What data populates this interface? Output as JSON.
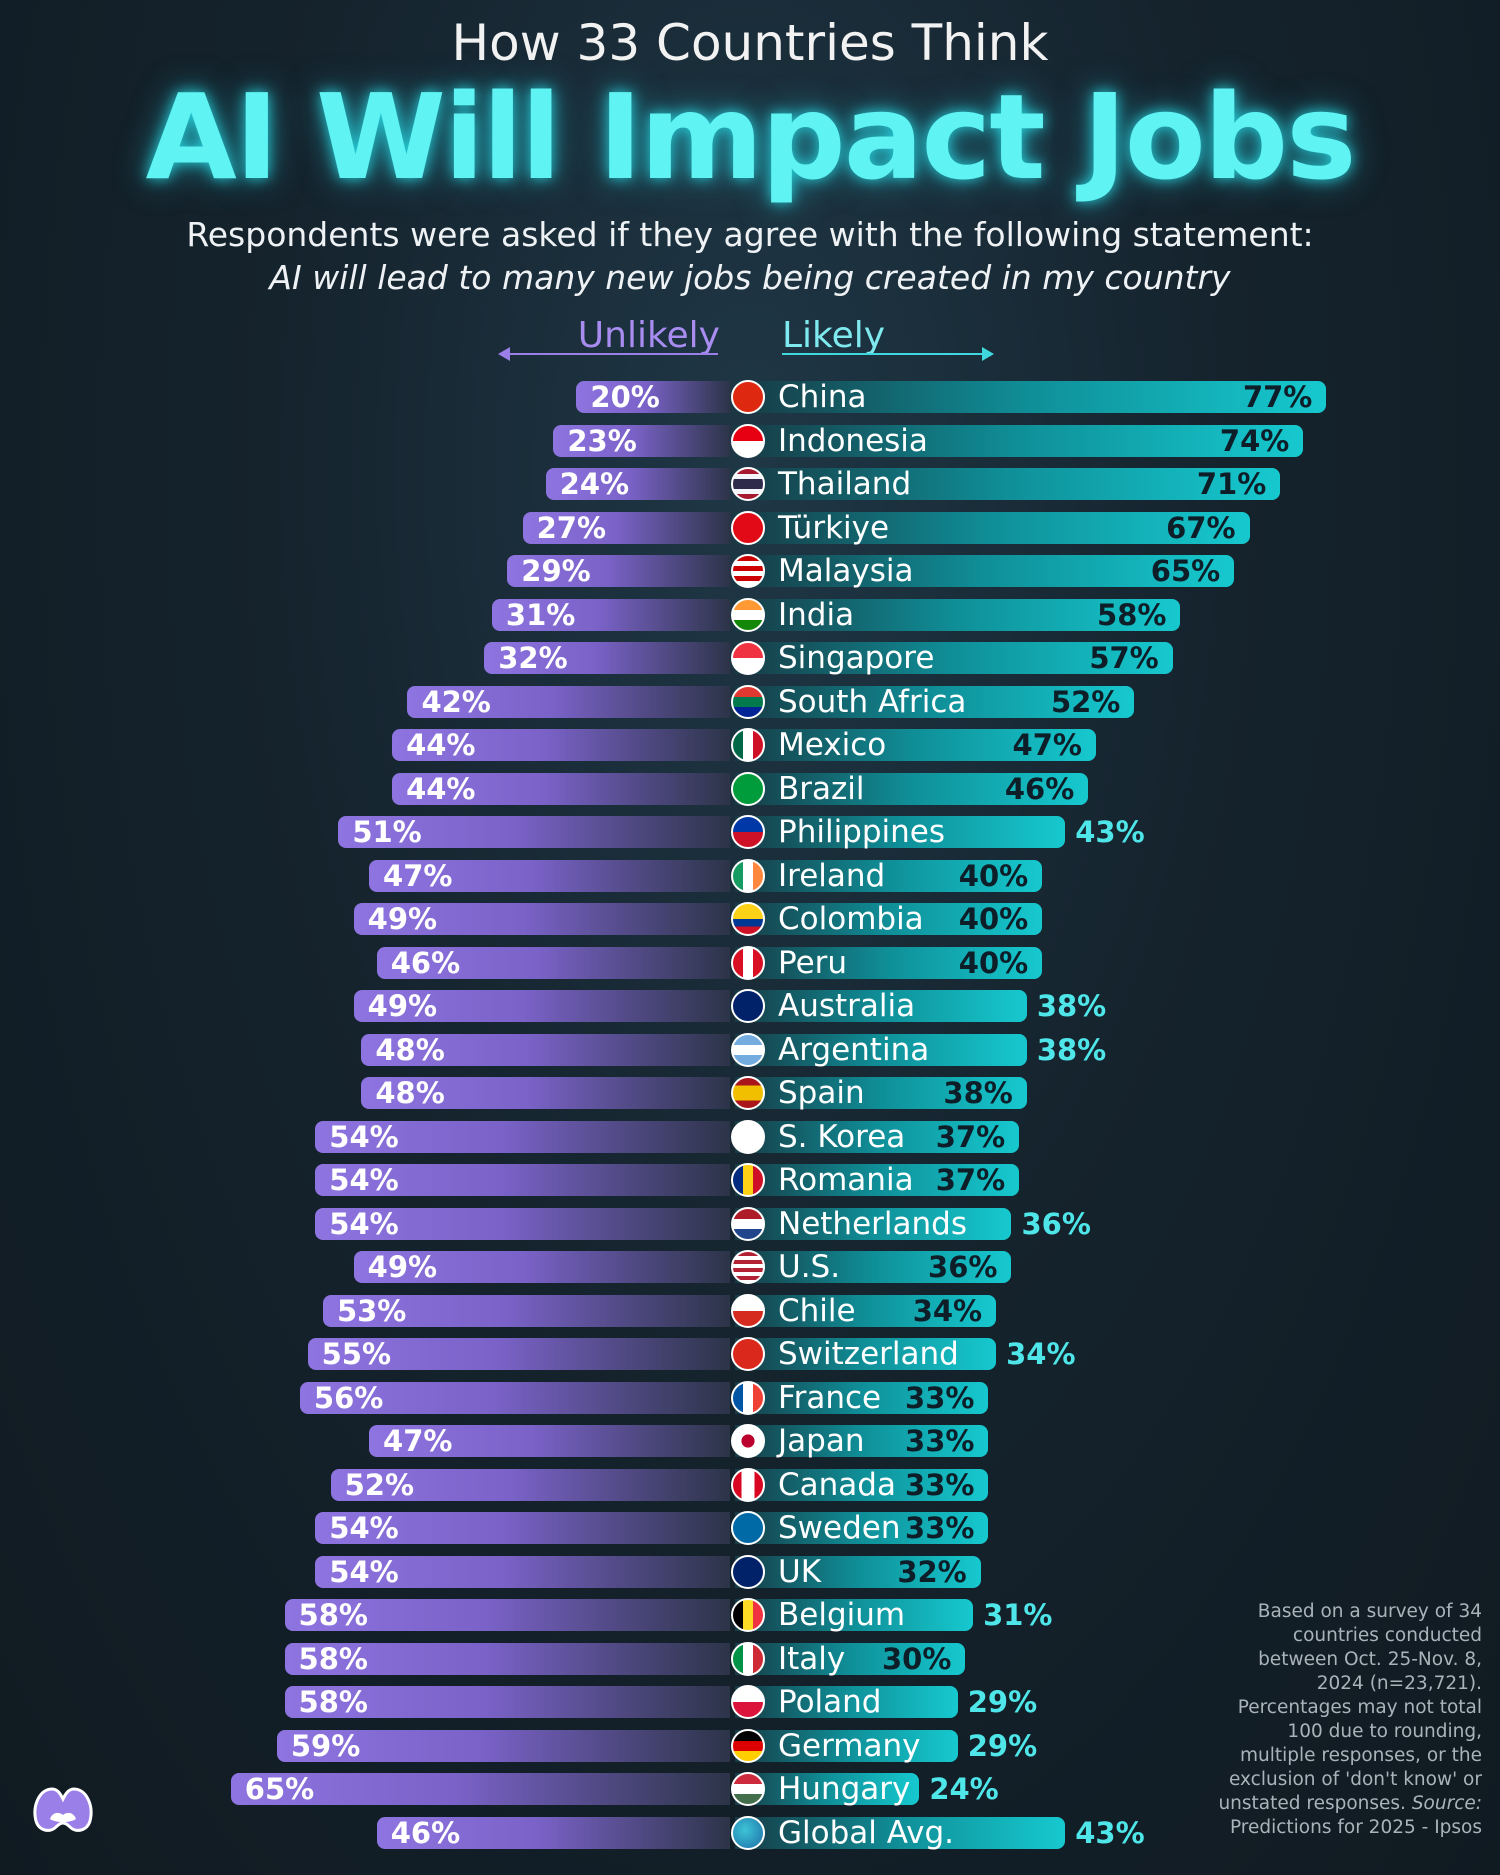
{
  "header": {
    "kicker": "How 33 Countries Think",
    "title": "AI Will Impact Jobs",
    "subtitle": "Respondents were asked if they agree with the following statement:",
    "statement": "AI will lead to many new jobs being created in my country"
  },
  "legend": {
    "unlikely": "Unlikely",
    "likely": "Likely"
  },
  "colors": {
    "unlikely": "#8e74e0",
    "likely": "#16c9cf",
    "title_glow": "#5ff3f3",
    "background": "#15232d"
  },
  "chart_data": {
    "type": "bar",
    "orientation": "horizontal-diverging",
    "series": [
      {
        "name": "Unlikely",
        "values": [
          20,
          23,
          24,
          27,
          29,
          31,
          32,
          42,
          44,
          44,
          51,
          47,
          49,
          46,
          49,
          48,
          48,
          54,
          54,
          54,
          49,
          53,
          55,
          56,
          47,
          52,
          54,
          54,
          58,
          58,
          58,
          59,
          65,
          46
        ]
      },
      {
        "name": "Likely",
        "values": [
          77,
          74,
          71,
          67,
          65,
          58,
          57,
          52,
          47,
          46,
          43,
          40,
          40,
          40,
          38,
          38,
          38,
          37,
          37,
          36,
          36,
          34,
          34,
          33,
          33,
          33,
          33,
          32,
          31,
          30,
          29,
          29,
          24,
          43
        ]
      }
    ],
    "categories": [
      "China",
      "Indonesia",
      "Thailand",
      "Türkiye",
      "Malaysia",
      "India",
      "Singapore",
      "South Africa",
      "Mexico",
      "Brazil",
      "Philippines",
      "Ireland",
      "Colombia",
      "Peru",
      "Australia",
      "Argentina",
      "Spain",
      "S. Korea",
      "Romania",
      "Netherlands",
      "U.S.",
      "Chile",
      "Switzerland",
      "France",
      "Japan",
      "Canada",
      "Sweden",
      "UK",
      "Belgium",
      "Italy",
      "Poland",
      "Germany",
      "Hungary",
      "Global Avg."
    ],
    "rows": [
      {
        "country": "China",
        "unlikely": 20,
        "likely": 77,
        "unlikely_label": "20%",
        "likely_label": "77%",
        "flag": "china-flag"
      },
      {
        "country": "Indonesia",
        "unlikely": 23,
        "likely": 74,
        "unlikely_label": "23%",
        "likely_label": "74%",
        "flag": "indonesia-flag"
      },
      {
        "country": "Thailand",
        "unlikely": 24,
        "likely": 71,
        "unlikely_label": "24%",
        "likely_label": "71%",
        "flag": "thailand-flag"
      },
      {
        "country": "Türkiye",
        "unlikely": 27,
        "likely": 67,
        "unlikely_label": "27%",
        "likely_label": "67%",
        "flag": "turkiye-flag"
      },
      {
        "country": "Malaysia",
        "unlikely": 29,
        "likely": 65,
        "unlikely_label": "29%",
        "likely_label": "65%",
        "flag": "malaysia-flag"
      },
      {
        "country": "India",
        "unlikely": 31,
        "likely": 58,
        "unlikely_label": "31%",
        "likely_label": "58%",
        "flag": "india-flag"
      },
      {
        "country": "Singapore",
        "unlikely": 32,
        "likely": 57,
        "unlikely_label": "32%",
        "likely_label": "57%",
        "flag": "singapore-flag"
      },
      {
        "country": "South Africa",
        "unlikely": 42,
        "likely": 52,
        "unlikely_label": "42%",
        "likely_label": "52%",
        "flag": "south-africa-flag"
      },
      {
        "country": "Mexico",
        "unlikely": 44,
        "likely": 47,
        "unlikely_label": "44%",
        "likely_label": "47%",
        "flag": "mexico-flag"
      },
      {
        "country": "Brazil",
        "unlikely": 44,
        "likely": 46,
        "unlikely_label": "44%",
        "likely_label": "46%",
        "flag": "brazil-flag"
      },
      {
        "country": "Philippines",
        "unlikely": 51,
        "likely": 43,
        "unlikely_label": "51%",
        "likely_label": "43%",
        "flag": "philippines-flag"
      },
      {
        "country": "Ireland",
        "unlikely": 47,
        "likely": 40,
        "unlikely_label": "47%",
        "likely_label": "40%",
        "flag": "ireland-flag"
      },
      {
        "country": "Colombia",
        "unlikely": 49,
        "likely": 40,
        "unlikely_label": "49%",
        "likely_label": "40%",
        "flag": "colombia-flag"
      },
      {
        "country": "Peru",
        "unlikely": 46,
        "likely": 40,
        "unlikely_label": "46%",
        "likely_label": "40%",
        "flag": "peru-flag"
      },
      {
        "country": "Australia",
        "unlikely": 49,
        "likely": 38,
        "unlikely_label": "49%",
        "likely_label": "38%",
        "flag": "australia-flag"
      },
      {
        "country": "Argentina",
        "unlikely": 48,
        "likely": 38,
        "unlikely_label": "48%",
        "likely_label": "38%",
        "flag": "argentina-flag"
      },
      {
        "country": "Spain",
        "unlikely": 48,
        "likely": 38,
        "unlikely_label": "48%",
        "likely_label": "38%",
        "flag": "spain-flag"
      },
      {
        "country": "S. Korea",
        "unlikely": 54,
        "likely": 37,
        "unlikely_label": "54%",
        "likely_label": "37%",
        "flag": "south-korea-flag"
      },
      {
        "country": "Romania",
        "unlikely": 54,
        "likely": 37,
        "unlikely_label": "54%",
        "likely_label": "37%",
        "flag": "romania-flag"
      },
      {
        "country": "Netherlands",
        "unlikely": 54,
        "likely": 36,
        "unlikely_label": "54%",
        "likely_label": "36%",
        "flag": "netherlands-flag"
      },
      {
        "country": "U.S.",
        "unlikely": 49,
        "likely": 36,
        "unlikely_label": "49%",
        "likely_label": "36%",
        "flag": "usa-flag"
      },
      {
        "country": "Chile",
        "unlikely": 53,
        "likely": 34,
        "unlikely_label": "53%",
        "likely_label": "34%",
        "flag": "chile-flag"
      },
      {
        "country": "Switzerland",
        "unlikely": 55,
        "likely": 34,
        "unlikely_label": "55%",
        "likely_label": "34%",
        "flag": "switzerland-flag"
      },
      {
        "country": "France",
        "unlikely": 56,
        "likely": 33,
        "unlikely_label": "56%",
        "likely_label": "33%",
        "flag": "france-flag"
      },
      {
        "country": "Japan",
        "unlikely": 47,
        "likely": 33,
        "unlikely_label": "47%",
        "likely_label": "33%",
        "flag": "japan-flag"
      },
      {
        "country": "Canada",
        "unlikely": 52,
        "likely": 33,
        "unlikely_label": "52%",
        "likely_label": "33%",
        "flag": "canada-flag"
      },
      {
        "country": "Sweden",
        "unlikely": 54,
        "likely": 33,
        "unlikely_label": "54%",
        "likely_label": "33%",
        "flag": "sweden-flag"
      },
      {
        "country": "UK",
        "unlikely": 54,
        "likely": 32,
        "unlikely_label": "54%",
        "likely_label": "32%",
        "flag": "uk-flag"
      },
      {
        "country": "Belgium",
        "unlikely": 58,
        "likely": 31,
        "unlikely_label": "58%",
        "likely_label": "31%",
        "flag": "belgium-flag"
      },
      {
        "country": "Italy",
        "unlikely": 58,
        "likely": 30,
        "unlikely_label": "58%",
        "likely_label": "30%",
        "flag": "italy-flag"
      },
      {
        "country": "Poland",
        "unlikely": 58,
        "likely": 29,
        "unlikely_label": "58%",
        "likely_label": "29%",
        "flag": "poland-flag"
      },
      {
        "country": "Germany",
        "unlikely": 59,
        "likely": 29,
        "unlikely_label": "59%",
        "likely_label": "29%",
        "flag": "germany-flag"
      },
      {
        "country": "Hungary",
        "unlikely": 65,
        "likely": 24,
        "unlikely_label": "65%",
        "likely_label": "24%",
        "flag": "hungary-flag"
      },
      {
        "country": "Global Avg.",
        "unlikely": 46,
        "likely": 43,
        "unlikely_label": "46%",
        "likely_label": "43%",
        "flag": "globe-icon"
      }
    ]
  },
  "note": {
    "text": "Based on a survey of 34 countries conducted between Oct. 25-Nov. 8, 2024 (n=23,721). Percentages may not total 100 due to rounding, multiple responses, or the exclusion of 'don't know' or unstated responses.",
    "source_label": "Source:",
    "source": "Predictions for 2025 - Ipsos"
  },
  "logo": {
    "icon": "binoculars-logo-icon"
  }
}
